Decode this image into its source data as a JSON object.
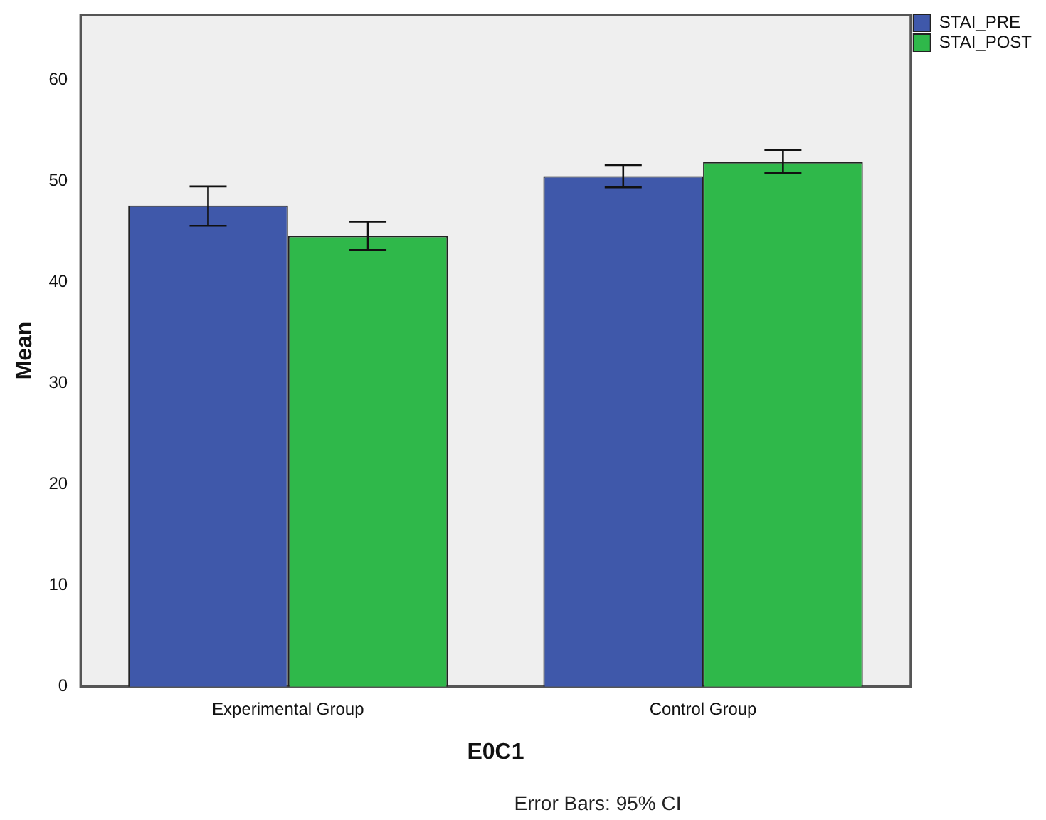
{
  "chart_data": {
    "type": "bar",
    "xlabel": "E0C1",
    "ylabel": "Mean",
    "categories": [
      "Experimental Group",
      "Control Group"
    ],
    "series": [
      {
        "name": "STAI_PRE",
        "color": "#3f58aa",
        "values": [
          47.6,
          50.5
        ],
        "errors": [
          [
            45.6,
            49.5
          ],
          [
            49.4,
            51.6
          ]
        ]
      },
      {
        "name": "STAI_POST",
        "color": "#2fb84a",
        "values": [
          44.6,
          51.9
        ],
        "errors": [
          [
            43.2,
            46.0
          ],
          [
            50.8,
            53.1
          ]
        ]
      }
    ],
    "ylim": [
      0,
      66.5
    ],
    "yticks": [
      0,
      10,
      20,
      30,
      40,
      50,
      60
    ],
    "grid": false,
    "legend": "top right",
    "annotations": [
      "Error Bars: 95% CI"
    ]
  }
}
